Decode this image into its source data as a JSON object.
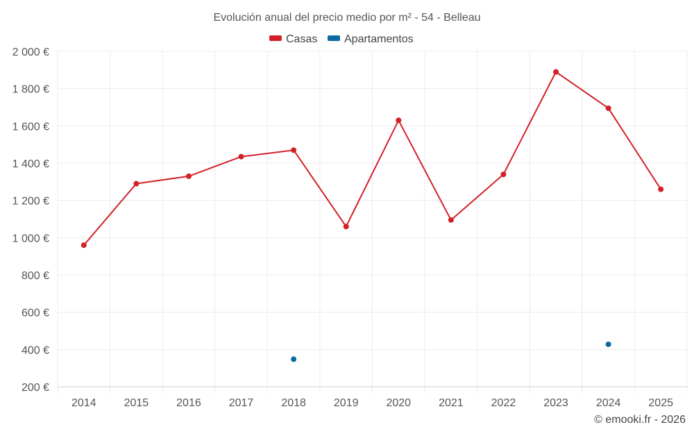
{
  "chart_data": {
    "type": "line",
    "title": "Evolución anual del precio medio por m² - 54 - Belleau",
    "categories": [
      "2014",
      "2015",
      "2016",
      "2017",
      "2018",
      "2019",
      "2020",
      "2021",
      "2022",
      "2023",
      "2024",
      "2025"
    ],
    "series": [
      {
        "name": "Casas",
        "color": "#d32027",
        "values": [
          960,
          1290,
          1330,
          1435,
          1470,
          1060,
          1630,
          1095,
          1340,
          1890,
          1695,
          1260
        ]
      },
      {
        "name": "Apartamentos",
        "color": "#0a6aa1",
        "values": [
          null,
          null,
          null,
          null,
          348,
          null,
          null,
          null,
          null,
          null,
          428,
          null
        ]
      }
    ],
    "ylim": [
      200,
      2000
    ],
    "yticks": [
      200,
      400,
      600,
      800,
      1000,
      1200,
      1400,
      1600,
      1800,
      2000
    ],
    "ytick_labels": [
      "200 €",
      "400 €",
      "600 €",
      "800 €",
      "1 000 €",
      "1 200 €",
      "1 400 €",
      "1 600 €",
      "1 800 €",
      "2 000 €"
    ],
    "grid": true,
    "legend_position": "top-center"
  },
  "credit": "© emooki.fr - 2026"
}
